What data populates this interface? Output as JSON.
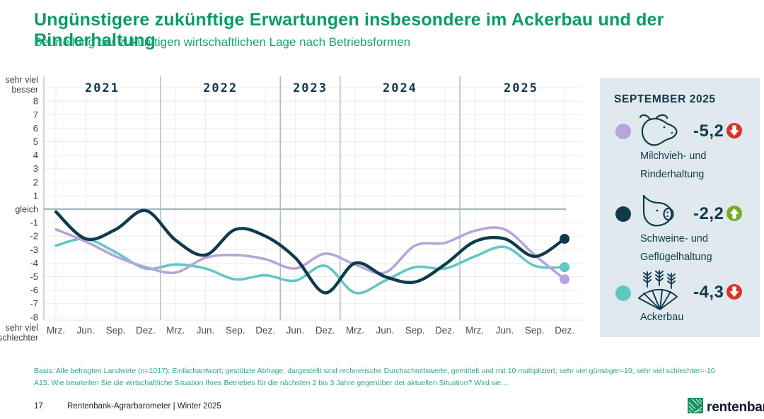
{
  "header": {
    "title": "Ungünstigere zukünftige Erwartungen insbesondere im Ackerbau und der Rinderhaltung",
    "subtitle": "Beurteilung der zukünftigen wirtschaftlichen Lage nach Betriebsformen"
  },
  "chart_data": {
    "type": "line",
    "title": "Beurteilung der zukünftigen wirtschaftlichen Lage nach Betriebsformen",
    "grid": true,
    "legend_position": "right-panel",
    "y_axis": {
      "max": 8,
      "min": -8,
      "top_label_1": "sehr viel",
      "top_label_2": "besser",
      "zero_label": "gleich",
      "bottom_label_1": "sehr viel",
      "bottom_label_2": "schlechter"
    },
    "years": [
      {
        "label": "2021",
        "months": [
          "Mrz.",
          "Jun.",
          "Sep.",
          "Dez."
        ]
      },
      {
        "label": "2022",
        "months": [
          "Mrz.",
          "Jun.",
          "Sep.",
          "Dez."
        ]
      },
      {
        "label": "2023",
        "months": [
          "Jun.",
          "Dez."
        ]
      },
      {
        "label": "2024",
        "months": [
          "Mrz.",
          "Jun.",
          "Sep.",
          "Dez."
        ]
      },
      {
        "label": "2025",
        "months": [
          "Mrz.",
          "Jun.",
          "Sep.",
          "Dez."
        ]
      }
    ],
    "series": [
      {
        "name": "Milchvieh- und Rinderhaltung",
        "color": "#b7a4da",
        "values": [
          -1.5,
          -2.4,
          -3.5,
          -4.3,
          -4.7,
          -3.6,
          -3.4,
          -3.7,
          -4.4,
          -3.3,
          -4.1,
          -4.7,
          -2.7,
          -2.5,
          -1.6,
          -1.5,
          -3.4,
          -5.2
        ]
      },
      {
        "name": "Schweine- und Geflügelhaltung",
        "color": "#0e3a4c",
        "values": [
          -0.2,
          -2.2,
          -1.5,
          -0.1,
          -2.3,
          -3.4,
          -1.5,
          -2.0,
          -3.6,
          -6.2,
          -4.0,
          -5.0,
          -5.4,
          -4.1,
          -2.4,
          -2.2,
          -3.5,
          -2.2
        ]
      },
      {
        "name": "Ackerbau",
        "color": "#63c7c3",
        "values": [
          -2.7,
          -2.2,
          -3.2,
          -4.4,
          -4.1,
          -4.4,
          -5.2,
          -4.9,
          -5.3,
          -4.2,
          -6.2,
          -5.3,
          -4.3,
          -4.4,
          -3.5,
          -2.8,
          -4.2,
          -4.3
        ]
      }
    ]
  },
  "sidebar": {
    "heading": "SEPTEMBER 2025",
    "trend_colors": {
      "down": "#d7352a",
      "up": "#76a92c"
    },
    "items": [
      {
        "icon": "cow-icon",
        "bullet_color": "#b7a4da",
        "value": "-5,2",
        "trend": "down",
        "label_line1": "Milchvieh- und",
        "label_line2": "Rinderhaltung"
      },
      {
        "icon": "pig-icon",
        "bullet_color": "#0e3a4c",
        "value": "-2,2",
        "trend": "up",
        "label_line1": "Schweine- und",
        "label_line2": "Geflügelhaltung"
      },
      {
        "icon": "wheat-icon",
        "bullet_color": "#62c6c2",
        "value": "-4,3",
        "trend": "down",
        "label_line1": "Ackerbau",
        "label_line2": ""
      }
    ]
  },
  "footer": {
    "basis_line1": "Basis: Alle befragten Landwirte (n=1017); Einfachantwort; gestützte Abfrage; dargestellt sind rechnerische Durchschnittswerte, gemittelt und mit 10 multipliziert; sehr viel günstiger=10;  sehr viel schlechter=-10",
    "basis_line2": "A15. Wie beurteilen Sie die wirtschaftliche Situation Ihres Betriebes für die nächsten 2 bis 3 Jahre gegenüber der aktuellen Situation? Wird sie…",
    "page_number": "17",
    "source": "Rentenbank-Agrarbarometer | Winter 2025",
    "logo_text": "rentenbank"
  },
  "colors": {
    "title_green": "#0a9b63",
    "panel_bg": "#dfe9ee",
    "dark_navy": "#123a4e",
    "grid": "#ececec",
    "year_separator": "#aabdc4",
    "zero_line": "#a3b5bc",
    "logo_green": "#13945f"
  }
}
